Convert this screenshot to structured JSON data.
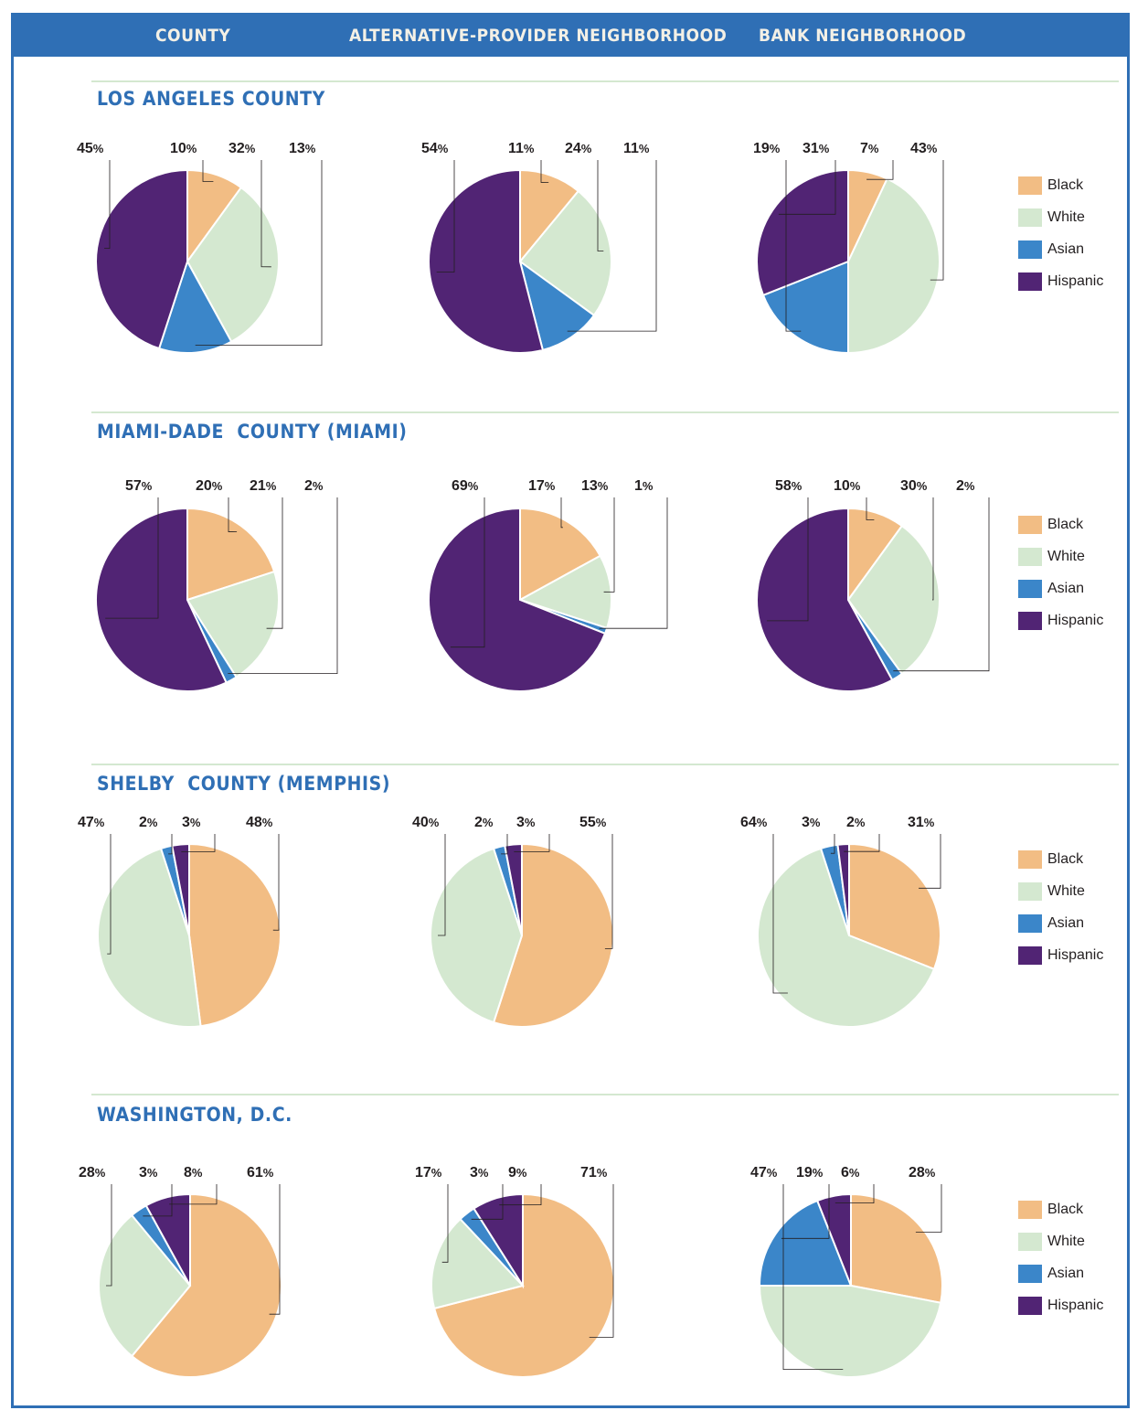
{
  "colors": {
    "Black": "#f2bd84",
    "White": "#d4e8d0",
    "Asian": "#3b86c9",
    "Hispanic": "#512474"
  },
  "header": {
    "col1": "COUNTY",
    "col2": "ALTERNATIVE-PROVIDER NEIGHBORHOOD",
    "col3": "BANK NEIGHBORHOOD"
  },
  "legend": [
    "Black",
    "White",
    "Asian",
    "Hispanic"
  ],
  "chart_data": [
    {
      "section": "LOS ANGELES COUNTY",
      "column": "COUNTY",
      "type": "pie",
      "slices": [
        {
          "group": "Black",
          "value": 10,
          "label": "10"
        },
        {
          "group": "White",
          "value": 32,
          "label": "32"
        },
        {
          "group": "Asian",
          "value": 13,
          "label": "13"
        },
        {
          "group": "Hispanic",
          "value": 45,
          "label": "45"
        }
      ]
    },
    {
      "section": "LOS ANGELES COUNTY",
      "column": "ALTERNATIVE-PROVIDER NEIGHBORHOOD",
      "type": "pie",
      "slices": [
        {
          "group": "Black",
          "value": 11,
          "label": "11"
        },
        {
          "group": "White",
          "value": 24,
          "label": "24"
        },
        {
          "group": "Asian",
          "value": 11,
          "label": "11"
        },
        {
          "group": "Hispanic",
          "value": 54,
          "label": "54"
        }
      ]
    },
    {
      "section": "LOS ANGELES COUNTY",
      "column": "BANK NEIGHBORHOOD",
      "type": "pie",
      "slices": [
        {
          "group": "Black",
          "value": 7,
          "label": "7"
        },
        {
          "group": "White",
          "value": 43,
          "label": "43"
        },
        {
          "group": "Asian",
          "value": 19,
          "label": "19"
        },
        {
          "group": "Hispanic",
          "value": 31,
          "label": "31"
        }
      ]
    },
    {
      "section": "MIAMI-DADE  COUNTY (MIAMI)",
      "column": "COUNTY",
      "type": "pie",
      "slices": [
        {
          "group": "Black",
          "value": 20,
          "label": "20"
        },
        {
          "group": "White",
          "value": 21,
          "label": "21"
        },
        {
          "group": "Asian",
          "value": 2,
          "label": "2"
        },
        {
          "group": "Hispanic",
          "value": 57,
          "label": "57"
        }
      ]
    },
    {
      "section": "MIAMI-DADE  COUNTY (MIAMI)",
      "column": "ALTERNATIVE-PROVIDER NEIGHBORHOOD",
      "type": "pie",
      "slices": [
        {
          "group": "Black",
          "value": 17,
          "label": "17"
        },
        {
          "group": "White",
          "value": 13,
          "label": "13"
        },
        {
          "group": "Asian",
          "value": 1,
          "label": "1"
        },
        {
          "group": "Hispanic",
          "value": 69,
          "label": "69"
        }
      ]
    },
    {
      "section": "MIAMI-DADE  COUNTY (MIAMI)",
      "column": "BANK NEIGHBORHOOD",
      "type": "pie",
      "slices": [
        {
          "group": "Black",
          "value": 10,
          "label": "10"
        },
        {
          "group": "White",
          "value": 30,
          "label": "30"
        },
        {
          "group": "Asian",
          "value": 2,
          "label": "2"
        },
        {
          "group": "Hispanic",
          "value": 58,
          "label": "58"
        }
      ]
    },
    {
      "section": "SHELBY  COUNTY (MEMPHIS)",
      "column": "COUNTY",
      "type": "pie",
      "slices": [
        {
          "group": "Black",
          "value": 48,
          "label": "48"
        },
        {
          "group": "White",
          "value": 47,
          "label": "47"
        },
        {
          "group": "Asian",
          "value": 2,
          "label": "2"
        },
        {
          "group": "Hispanic",
          "value": 3,
          "label": "3"
        }
      ]
    },
    {
      "section": "SHELBY  COUNTY (MEMPHIS)",
      "column": "ALTERNATIVE-PROVIDER NEIGHBORHOOD",
      "type": "pie",
      "slices": [
        {
          "group": "Black",
          "value": 55,
          "label": "55"
        },
        {
          "group": "White",
          "value": 40,
          "label": "40"
        },
        {
          "group": "Asian",
          "value": 2,
          "label": "2"
        },
        {
          "group": "Hispanic",
          "value": 3,
          "label": "3"
        }
      ]
    },
    {
      "section": "SHELBY  COUNTY (MEMPHIS)",
      "column": "BANK NEIGHBORHOOD",
      "type": "pie",
      "slices": [
        {
          "group": "Black",
          "value": 31,
          "label": "31"
        },
        {
          "group": "White",
          "value": 64,
          "label": "64"
        },
        {
          "group": "Asian",
          "value": 3,
          "label": "3"
        },
        {
          "group": "Hispanic",
          "value": 2,
          "label": "2"
        }
      ]
    },
    {
      "section": "WASHINGTON, D.C.",
      "column": "COUNTY",
      "type": "pie",
      "slices": [
        {
          "group": "Black",
          "value": 61,
          "label": "61"
        },
        {
          "group": "White",
          "value": 28,
          "label": "28"
        },
        {
          "group": "Asian",
          "value": 3,
          "label": "3"
        },
        {
          "group": "Hispanic",
          "value": 8,
          "label": "8"
        }
      ]
    },
    {
      "section": "WASHINGTON, D.C.",
      "column": "ALTERNATIVE-PROVIDER NEIGHBORHOOD",
      "type": "pie",
      "slices": [
        {
          "group": "Black",
          "value": 71,
          "label": "71"
        },
        {
          "group": "White",
          "value": 17,
          "label": "17"
        },
        {
          "group": "Asian",
          "value": 3,
          "label": "3"
        },
        {
          "group": "Hispanic",
          "value": 9,
          "label": "9"
        }
      ]
    },
    {
      "section": "WASHINGTON, D.C.",
      "column": "BANK NEIGHBORHOOD",
      "type": "pie",
      "slices": [
        {
          "group": "Black",
          "value": 28,
          "label": "28"
        },
        {
          "group": "White",
          "value": 47,
          "label": "47"
        },
        {
          "group": "Asian",
          "value": 19,
          "label": "19"
        },
        {
          "group": "Hispanic",
          "value": 6,
          "label": "6"
        }
      ]
    }
  ]
}
